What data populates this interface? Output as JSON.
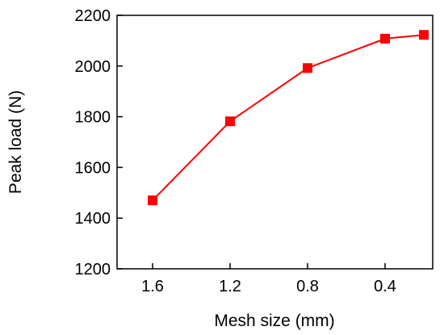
{
  "chart_data": {
    "type": "line",
    "title": "",
    "xlabel": "Mesh size (mm)",
    "ylabel": "Peak load (N)",
    "x_axis": {
      "reversed": true,
      "tick_values": [
        1.6,
        1.2,
        0.8,
        0.4
      ],
      "tick_labels": [
        "1.6",
        "1.2",
        "0.8",
        "0.4"
      ]
    },
    "y_axis": {
      "range": [
        1200,
        2200
      ],
      "tick_values": [
        1200,
        1400,
        1600,
        1800,
        2000,
        2200
      ],
      "tick_labels": [
        "1200",
        "1400",
        "1600",
        "1800",
        "2000",
        "2200"
      ]
    },
    "grid": false,
    "series": [
      {
        "color": "#ff0000",
        "marker": "square",
        "x": [
          1.6,
          1.2,
          0.8,
          0.4,
          0.2
        ],
        "y": [
          1470,
          1782,
          1992,
          2108,
          2123
        ]
      }
    ]
  }
}
